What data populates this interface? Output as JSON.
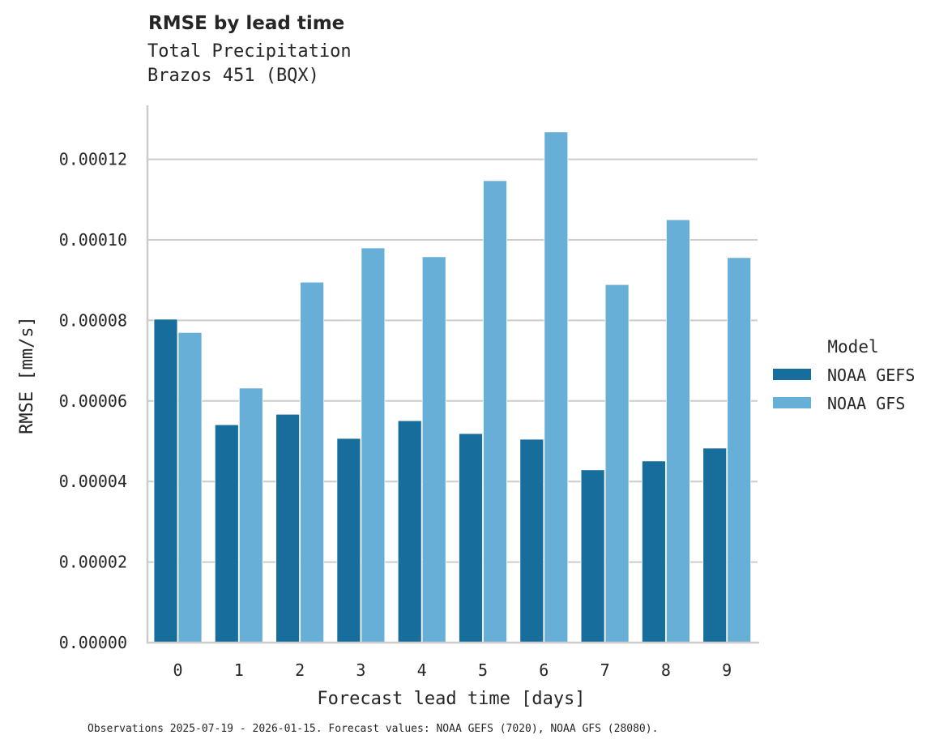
{
  "header": {
    "title": "RMSE by lead time",
    "subtitle_line1": "Total Precipitation",
    "subtitle_line2": "Brazos 451 (BQX)"
  },
  "footer": {
    "note": "Observations 2025-07-19 - 2026-01-15. Forecast values: NOAA GEFS (7020), NOAA GFS (28080)."
  },
  "legend": {
    "title": "Model",
    "items": [
      {
        "label": "NOAA GEFS",
        "color": "#176d9c"
      },
      {
        "label": "NOAA GFS",
        "color": "#68afd7"
      }
    ]
  },
  "axes": {
    "xlabel": "Forecast lead time [days]",
    "ylabel": "RMSE [mm/s]",
    "yticks": [
      "0.00000",
      "0.00002",
      "0.00004",
      "0.00006",
      "0.00008",
      "0.00010",
      "0.00012"
    ],
    "xticks": [
      "0",
      "1",
      "2",
      "3",
      "4",
      "5",
      "6",
      "7",
      "8",
      "9"
    ]
  },
  "chart_data": {
    "type": "bar",
    "title": "RMSE by lead time",
    "subtitle": "Total Precipitation — Brazos 451 (BQX)",
    "xlabel": "Forecast lead time [days]",
    "ylabel": "RMSE [mm/s]",
    "categories": [
      "0",
      "1",
      "2",
      "3",
      "4",
      "5",
      "6",
      "7",
      "8",
      "9"
    ],
    "series": [
      {
        "name": "NOAA GEFS",
        "color": "#176d9c",
        "values": [
          8.03e-05,
          5.41e-05,
          5.67e-05,
          5.07e-05,
          5.51e-05,
          5.19e-05,
          5.05e-05,
          4.29e-05,
          4.51e-05,
          4.83e-05
        ]
      },
      {
        "name": "NOAA GFS",
        "color": "#68afd7",
        "values": [
          7.7e-05,
          6.32e-05,
          8.95e-05,
          9.8e-05,
          9.58e-05,
          0.0001147,
          0.0001268,
          8.89e-05,
          0.000105,
          9.56e-05
        ]
      }
    ],
    "ylim": [
      0,
      0.000133
    ],
    "yticks": [
      0,
      2e-05,
      4e-05,
      6e-05,
      8e-05,
      0.0001,
      0.00012
    ],
    "grid": "horizontal",
    "legend_position": "right",
    "legend_title": "Model"
  }
}
